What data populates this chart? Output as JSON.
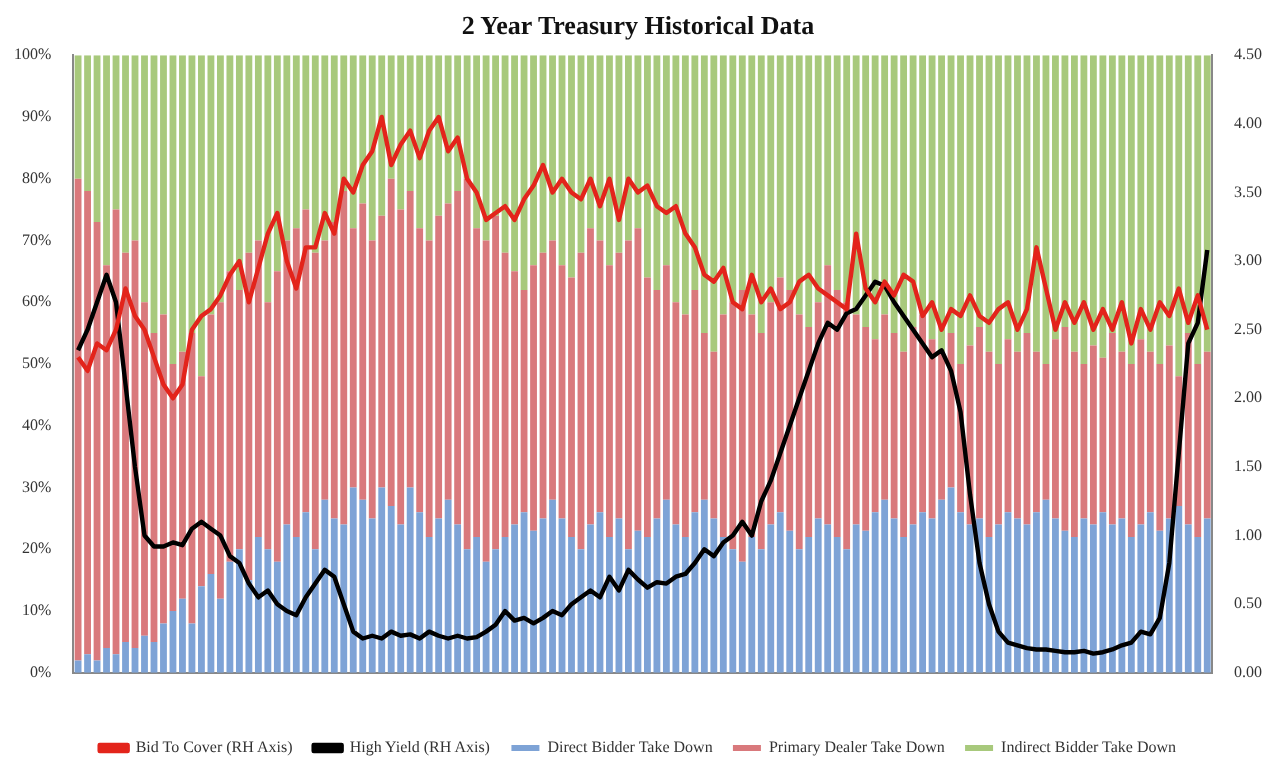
{
  "chart_data": {
    "type": "bar",
    "title": "2 Year Treasury Historical Data",
    "stacked": true,
    "legend": "bottom",
    "categories": [
      null,
      null,
      null,
      null,
      null,
      null,
      null,
      null,
      null,
      null,
      null,
      null,
      null,
      null,
      null,
      null,
      null,
      null,
      null,
      null,
      null,
      null,
      null,
      null,
      null,
      null,
      null,
      null,
      null,
      null,
      null,
      null,
      null,
      null,
      null,
      null,
      null,
      null,
      null,
      null,
      null,
      null,
      null,
      null,
      null,
      null,
      null,
      null,
      null,
      null,
      null,
      null,
      null,
      null,
      null,
      null,
      null,
      null,
      null,
      null,
      null,
      null,
      null,
      null,
      null,
      null,
      null,
      null,
      null,
      null,
      null,
      null,
      null,
      null,
      null,
      null,
      null,
      null,
      null,
      null,
      null,
      null,
      null,
      null,
      null,
      null,
      null,
      null,
      null,
      null,
      null,
      null,
      null,
      null,
      null,
      null,
      null,
      null,
      null,
      null,
      null,
      null,
      null,
      null,
      null,
      null,
      null,
      null,
      null,
      null,
      null,
      null,
      null,
      null,
      null,
      null,
      null,
      null,
      null,
      null
    ],
    "ylim": [
      0,
      100
    ],
    "yticks": [
      {
        "value": 0,
        "label": "0%"
      },
      {
        "value": 10,
        "label": "10%"
      },
      {
        "value": 20,
        "label": "20%"
      },
      {
        "value": 30,
        "label": "30%"
      },
      {
        "value": 40,
        "label": "40%"
      },
      {
        "value": 50,
        "label": "50%"
      },
      {
        "value": 60,
        "label": "60%"
      },
      {
        "value": 70,
        "label": "70%"
      },
      {
        "value": 80,
        "label": "80%"
      },
      {
        "value": 90,
        "label": "90%"
      },
      {
        "value": 100,
        "label": "100%"
      }
    ],
    "y2lim": [
      0,
      4.5
    ],
    "y2ticks": [
      {
        "value": 0,
        "label": "0.00"
      },
      {
        "value": 0.5,
        "label": "0.50"
      },
      {
        "value": 1,
        "label": "1.00"
      },
      {
        "value": 1.5,
        "label": "1.50"
      },
      {
        "value": 2,
        "label": "2.00"
      },
      {
        "value": 2.5,
        "label": "2.50"
      },
      {
        "value": 3,
        "label": "3.00"
      },
      {
        "value": 3.5,
        "label": "3.50"
      },
      {
        "value": 4,
        "label": "4.00"
      },
      {
        "value": 4.5,
        "label": "4.50"
      }
    ],
    "series": [
      {
        "name": "Direct Bidder Take Down",
        "color": "#7ea3d6",
        "values": [
          2,
          3,
          2,
          4,
          3,
          5,
          4,
          6,
          5,
          8,
          10,
          12,
          8,
          14,
          16,
          12,
          18,
          20,
          15,
          22,
          20,
          18,
          24,
          22,
          26,
          20,
          28,
          25,
          24,
          30,
          28,
          25,
          30,
          27,
          24,
          30,
          26,
          22,
          25,
          28,
          24,
          20,
          22,
          18,
          20,
          22,
          24,
          26,
          23,
          25,
          28,
          25,
          22,
          20,
          24,
          26,
          22,
          25,
          20,
          23,
          22,
          25,
          28,
          24,
          22,
          26,
          28,
          25,
          22,
          20,
          18,
          22,
          20,
          24,
          26,
          23,
          20,
          22,
          25,
          24,
          22,
          20,
          24,
          23,
          26,
          28,
          25,
          22,
          24,
          26,
          25,
          28,
          30,
          26,
          24,
          25,
          22,
          24,
          26,
          25,
          24,
          26,
          28,
          25,
          23,
          22,
          25,
          24,
          26,
          24,
          25,
          22,
          24,
          26,
          23,
          25,
          27,
          24,
          22,
          25
        ]
      },
      {
        "name": "Primary Dealer Take Down",
        "color": "#d9797c",
        "values": [
          78,
          75,
          71,
          62,
          72,
          63,
          66,
          54,
          50,
          50,
          40,
          40,
          47,
          34,
          42,
          48,
          47,
          42,
          53,
          48,
          40,
          47,
          46,
          50,
          49,
          48,
          42,
          48,
          54,
          42,
          48,
          45,
          44,
          53,
          51,
          48,
          46,
          48,
          49,
          48,
          54,
          60,
          50,
          52,
          54,
          46,
          41,
          36,
          43,
          43,
          42,
          41,
          42,
          48,
          48,
          44,
          44,
          43,
          50,
          49,
          42,
          37,
          38,
          36,
          36,
          36,
          27,
          27,
          36,
          40,
          44,
          36,
          35,
          36,
          38,
          39,
          38,
          34,
          35,
          42,
          40,
          40,
          34,
          33,
          28,
          30,
          30,
          30,
          32,
          32,
          29,
          24,
          25,
          24,
          29,
          31,
          30,
          26,
          28,
          27,
          31,
          26,
          22,
          29,
          33,
          30,
          25,
          29,
          25,
          31,
          27,
          28,
          30,
          26,
          27,
          28,
          21,
          31,
          28,
          27
        ]
      },
      {
        "name": "Indirect Bidder Take Down",
        "color": "#a8c97c",
        "values": [
          20,
          22,
          27,
          34,
          25,
          32,
          30,
          40,
          45,
          42,
          50,
          48,
          45,
          52,
          42,
          40,
          35,
          38,
          32,
          30,
          40,
          35,
          30,
          28,
          25,
          32,
          30,
          27,
          22,
          28,
          24,
          30,
          26,
          20,
          25,
          22,
          28,
          30,
          26,
          24,
          22,
          20,
          28,
          30,
          26,
          32,
          35,
          38,
          34,
          32,
          30,
          34,
          36,
          32,
          28,
          30,
          34,
          32,
          30,
          28,
          36,
          38,
          34,
          40,
          42,
          38,
          45,
          48,
          42,
          40,
          38,
          42,
          45,
          40,
          36,
          38,
          42,
          44,
          40,
          34,
          38,
          40,
          42,
          44,
          46,
          42,
          45,
          48,
          44,
          42,
          46,
          48,
          45,
          50,
          47,
          44,
          48,
          50,
          46,
          48,
          45,
          48,
          50,
          46,
          44,
          48,
          50,
          47,
          49,
          45,
          48,
          50,
          46,
          48,
          50,
          47,
          52,
          45,
          50,
          48
        ]
      },
      {
        "name": "Bid To Cover (RH Axis)",
        "type": "line",
        "axis": "y2",
        "color": "#e3241b",
        "values": [
          2.3,
          2.2,
          2.4,
          2.35,
          2.5,
          2.8,
          2.6,
          2.5,
          2.3,
          2.1,
          2.0,
          2.1,
          2.5,
          2.6,
          2.65,
          2.75,
          2.9,
          3.0,
          2.7,
          2.95,
          3.2,
          3.35,
          3.0,
          2.8,
          3.1,
          3.1,
          3.35,
          3.2,
          3.6,
          3.5,
          3.7,
          3.8,
          4.05,
          3.7,
          3.85,
          3.95,
          3.75,
          3.95,
          4.05,
          3.8,
          3.9,
          3.6,
          3.5,
          3.3,
          3.35,
          3.4,
          3.3,
          3.45,
          3.55,
          3.7,
          3.5,
          3.6,
          3.5,
          3.45,
          3.6,
          3.4,
          3.6,
          3.3,
          3.6,
          3.5,
          3.55,
          3.4,
          3.35,
          3.4,
          3.2,
          3.1,
          2.9,
          2.85,
          2.95,
          2.7,
          2.65,
          2.9,
          2.7,
          2.8,
          2.65,
          2.7,
          2.85,
          2.9,
          2.8,
          2.75,
          2.7,
          2.65,
          3.2,
          2.8,
          2.7,
          2.85,
          2.75,
          2.9,
          2.85,
          2.6,
          2.7,
          2.5,
          2.65,
          2.6,
          2.75,
          2.6,
          2.55,
          2.65,
          2.7,
          2.5,
          2.65,
          3.1,
          2.8,
          2.5,
          2.7,
          2.55,
          2.7,
          2.5,
          2.65,
          2.5,
          2.7,
          2.4,
          2.65,
          2.5,
          2.7,
          2.6,
          2.8,
          2.55,
          2.75,
          2.5
        ]
      },
      {
        "name": "High Yield (RH Axis)",
        "type": "line",
        "axis": "y2",
        "color": "#000000",
        "values": [
          2.35,
          2.5,
          2.7,
          2.9,
          2.7,
          2.1,
          1.5,
          1.0,
          0.92,
          0.92,
          0.95,
          0.93,
          1.05,
          1.1,
          1.05,
          1.0,
          0.85,
          0.8,
          0.65,
          0.55,
          0.6,
          0.5,
          0.45,
          0.42,
          0.55,
          0.65,
          0.75,
          0.7,
          0.5,
          0.3,
          0.25,
          0.27,
          0.25,
          0.3,
          0.27,
          0.28,
          0.25,
          0.3,
          0.27,
          0.25,
          0.27,
          0.25,
          0.26,
          0.3,
          0.35,
          0.45,
          0.38,
          0.4,
          0.36,
          0.4,
          0.45,
          0.42,
          0.5,
          0.55,
          0.6,
          0.55,
          0.7,
          0.6,
          0.75,
          0.68,
          0.62,
          0.66,
          0.65,
          0.7,
          0.72,
          0.8,
          0.9,
          0.85,
          0.95,
          1.0,
          1.1,
          1.0,
          1.25,
          1.4,
          1.6,
          1.8,
          2.0,
          2.2,
          2.4,
          2.55,
          2.5,
          2.62,
          2.65,
          2.75,
          2.85,
          2.82,
          2.7,
          2.6,
          2.5,
          2.4,
          2.3,
          2.35,
          2.2,
          1.9,
          1.3,
          0.8,
          0.5,
          0.3,
          0.22,
          0.2,
          0.18,
          0.17,
          0.17,
          0.16,
          0.15,
          0.15,
          0.16,
          0.14,
          0.15,
          0.17,
          0.2,
          0.22,
          0.3,
          0.28,
          0.4,
          0.8,
          1.6,
          2.4,
          2.55,
          3.08
        ]
      }
    ]
  }
}
